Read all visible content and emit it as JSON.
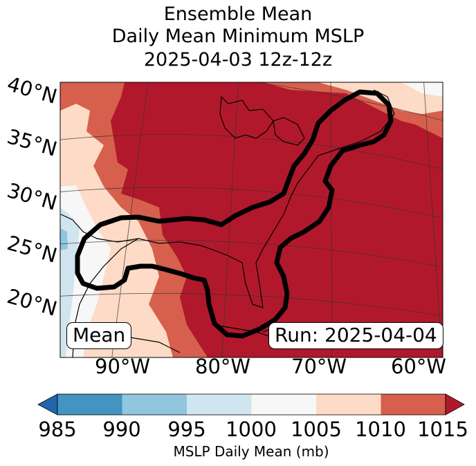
{
  "title": {
    "line1": "Ensemble Mean",
    "line2": "Daily Mean Minimum MSLP",
    "line3": "2025-04-03 12z-12z"
  },
  "map": {
    "lat_labels": [
      "40°N",
      "35°N",
      "30°N",
      "25°N",
      "20°N"
    ],
    "lon_labels": [
      "90°W",
      "80°W",
      "70°W",
      "60°W"
    ],
    "mean_label": "Mean",
    "run_label": "Run: 2025-04-04"
  },
  "colorbar": {
    "label": "MSLP Daily Mean (mb)",
    "ticks": [
      "985",
      "990",
      "995",
      "1000",
      "1005",
      "1010",
      "1015"
    ],
    "colors": [
      "#2166ac",
      "#4393c3",
      "#92c5de",
      "#d1e5f0",
      "#f7f7f7",
      "#fddbc7",
      "#d6604d",
      "#b2182b"
    ]
  }
}
